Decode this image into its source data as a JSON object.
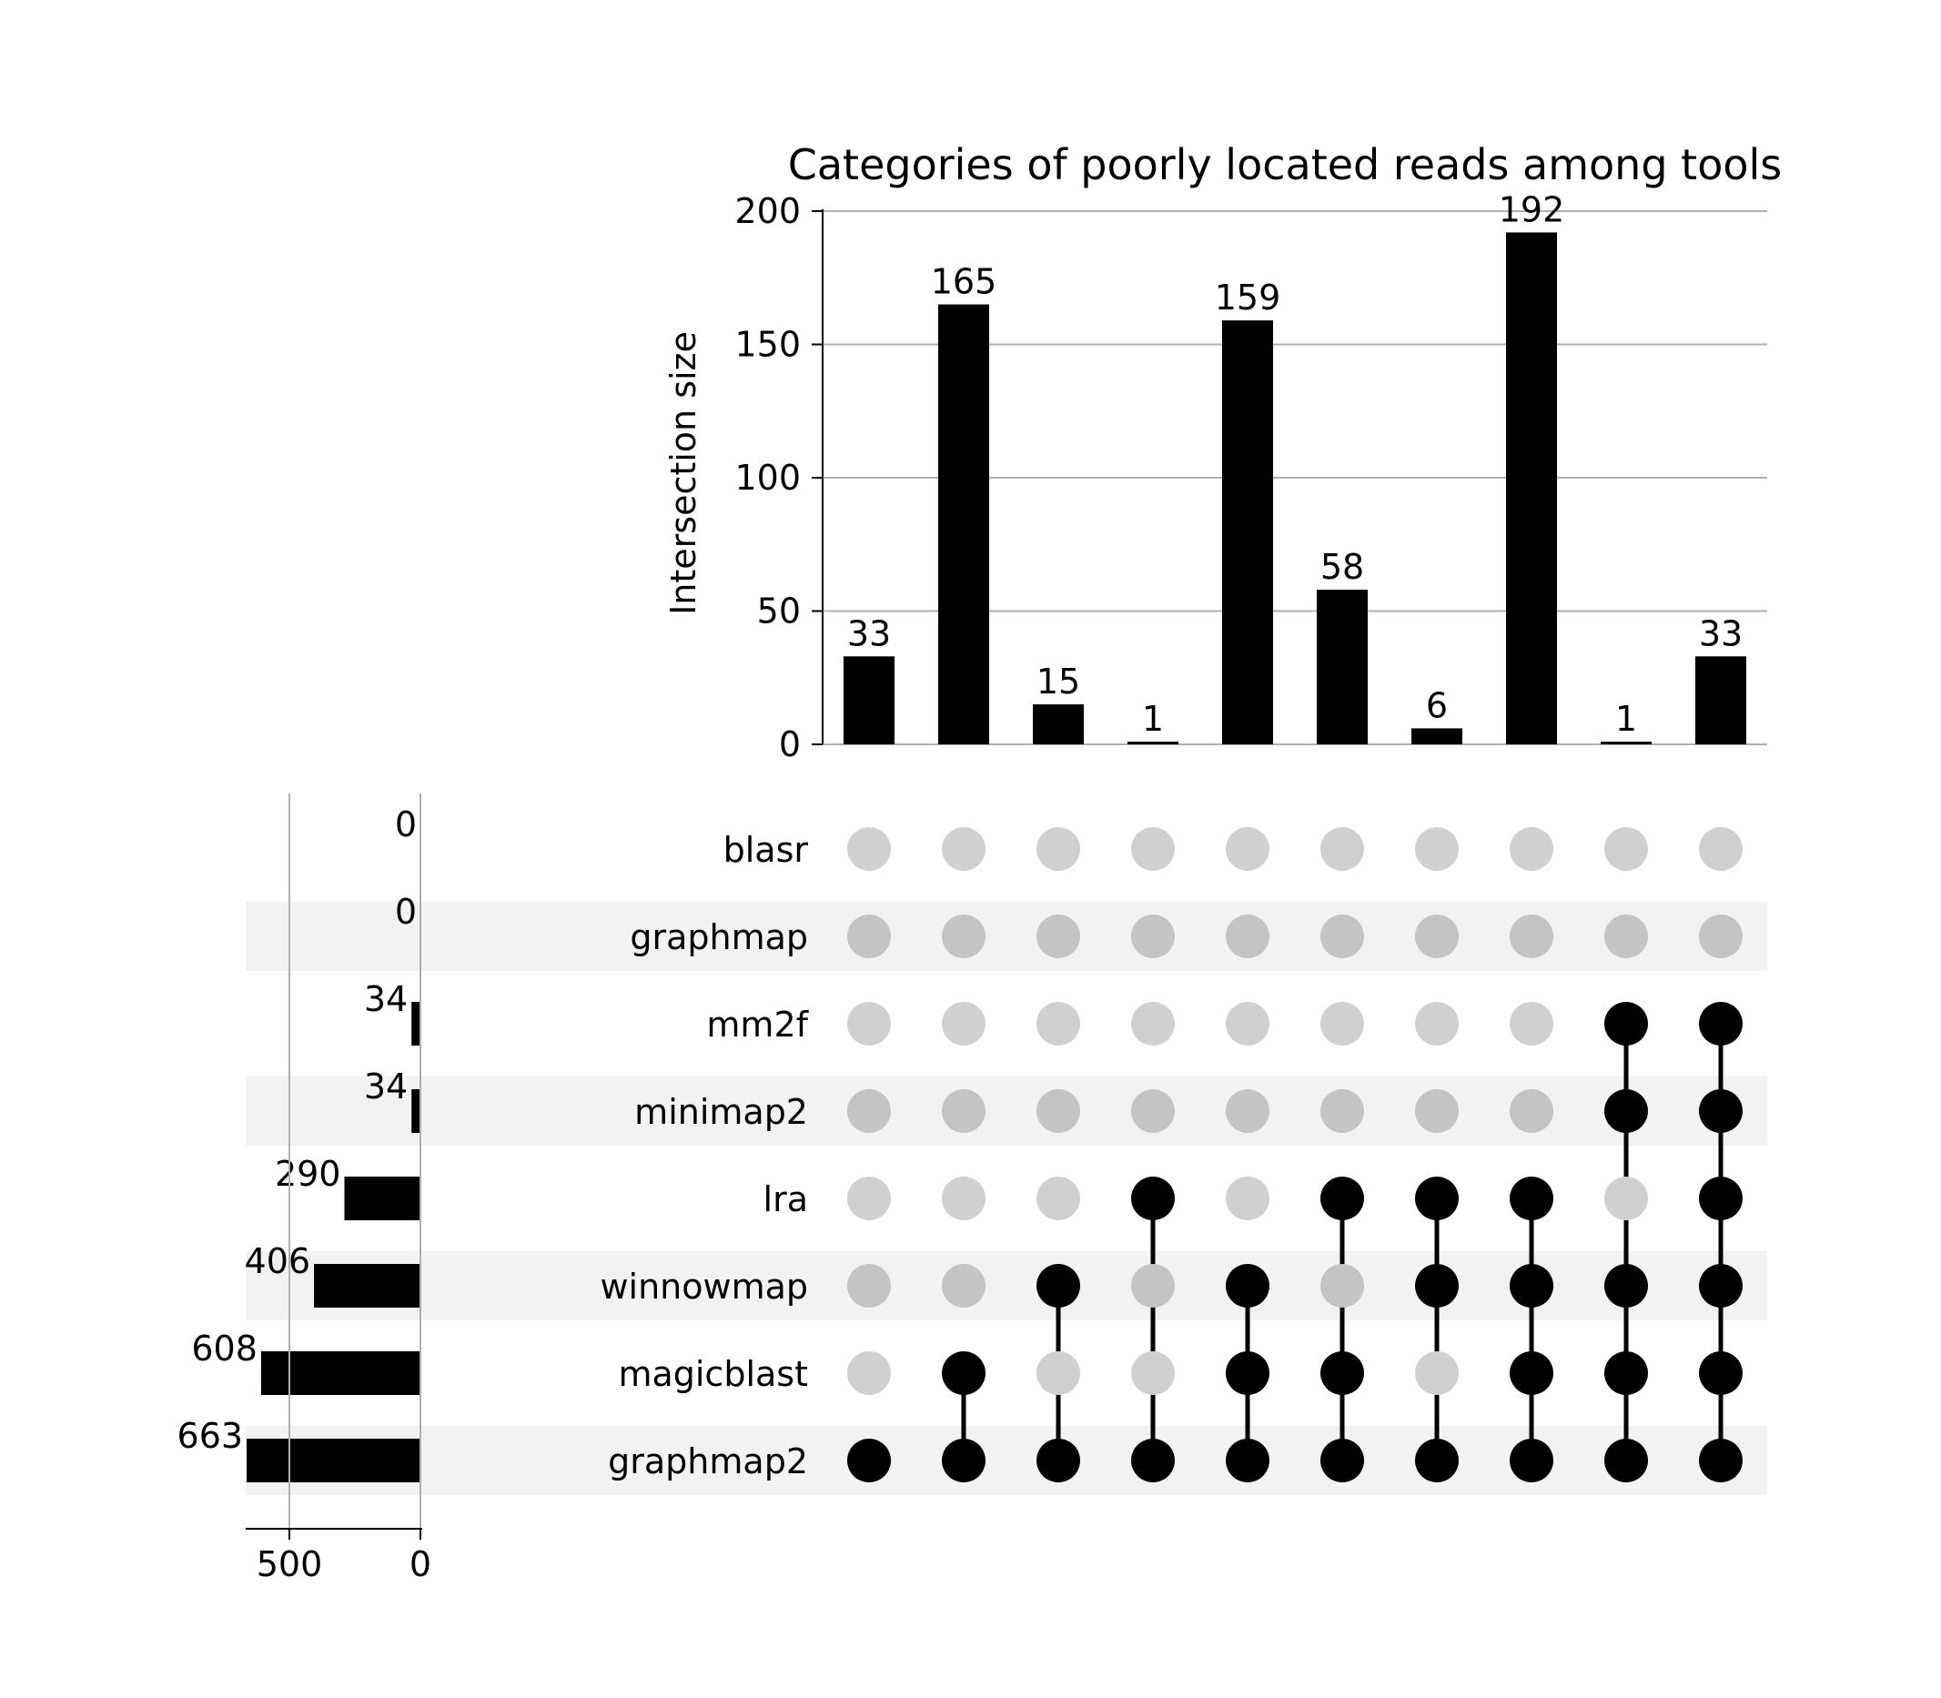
{
  "chart_data": {
    "type": "upset",
    "title": "Categories of poorly located reads among tools",
    "ylabel": "Intersection size",
    "ylim": [
      0,
      200
    ],
    "yticks": [
      0,
      50,
      100,
      150,
      200
    ],
    "grid": true,
    "sets": [
      "blasr",
      "graphmap",
      "mm2f",
      "minimap2",
      "lra",
      "winnowmap",
      "magicblast",
      "graphmap2"
    ],
    "set_sizes": [
      0,
      0,
      34,
      34,
      290,
      406,
      608,
      663
    ],
    "set_size_ticks": [
      500,
      0
    ],
    "intersections": [
      {
        "value": 33,
        "members": [
          "graphmap2"
        ]
      },
      {
        "value": 165,
        "members": [
          "magicblast",
          "graphmap2"
        ]
      },
      {
        "value": 15,
        "members": [
          "winnowmap",
          "graphmap2"
        ]
      },
      {
        "value": 1,
        "members": [
          "lra",
          "graphmap2"
        ]
      },
      {
        "value": 159,
        "members": [
          "winnowmap",
          "magicblast",
          "graphmap2"
        ]
      },
      {
        "value": 58,
        "members": [
          "lra",
          "magicblast",
          "graphmap2"
        ]
      },
      {
        "value": 6,
        "members": [
          "lra",
          "winnowmap",
          "graphmap2"
        ]
      },
      {
        "value": 192,
        "members": [
          "lra",
          "winnowmap",
          "magicblast",
          "graphmap2"
        ]
      },
      {
        "value": 1,
        "members": [
          "mm2f",
          "minimap2",
          "winnowmap",
          "magicblast",
          "graphmap2"
        ]
      },
      {
        "value": 33,
        "members": [
          "mm2f",
          "minimap2",
          "lra",
          "winnowmap",
          "magicblast",
          "graphmap2"
        ]
      }
    ],
    "colors": {
      "bar": "#000000",
      "dot_active": "#000000",
      "dot_inactive": "#d0d0d0",
      "dot_inactive_shaded": "#c4c4c4",
      "row_shade": "#f2f2f2",
      "grid": "#b0b0b0"
    }
  }
}
